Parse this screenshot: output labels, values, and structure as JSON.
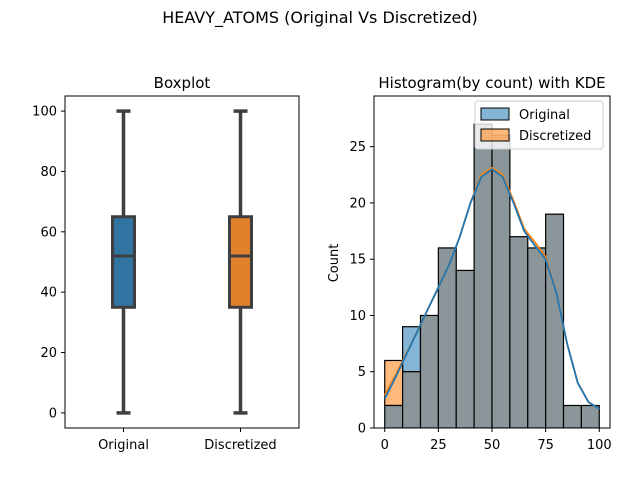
{
  "suptitle": "HEAVY_ATOMS (Original Vs Discretized)",
  "colors": {
    "original": "#1f77b4",
    "discretized": "#ff7f0e",
    "box_original": "#3274a1",
    "box_discretized": "#e1812c",
    "box_line": "#3f3f3f",
    "hist_original": "#1f77b4",
    "hist_discretized": "#ff7f0e",
    "hist_overlap": "#8a9699",
    "kde_original": "#1f77b4",
    "kde_discretized": "#ff7f0e"
  },
  "chart_data": [
    {
      "type": "box",
      "title": "Boxplot",
      "xlabel": "",
      "ylabel": "",
      "categories": [
        "Original",
        "Discretized"
      ],
      "ylim": [
        -5,
        105
      ],
      "yticks": [
        0,
        20,
        40,
        60,
        80,
        100
      ],
      "boxes": [
        {
          "category": "Original",
          "min": 0,
          "q1": 35,
          "median": 52,
          "q3": 65,
          "max": 100
        },
        {
          "category": "Discretized",
          "min": 0,
          "q1": 35,
          "median": 52,
          "q3": 65,
          "max": 100
        }
      ],
      "grid": false
    },
    {
      "type": "histogram",
      "title": "Histogram(by count) with KDE",
      "xlabel": "",
      "ylabel": "Count",
      "xlim": [
        -5,
        105
      ],
      "ylim": [
        0,
        29.5
      ],
      "xticks": [
        0,
        25,
        50,
        75,
        100
      ],
      "yticks": [
        0,
        5,
        10,
        15,
        20,
        25
      ],
      "legend_position": "top-right",
      "bin_edges": [
        0,
        8.33,
        16.67,
        25,
        33.33,
        41.67,
        50,
        58.33,
        66.67,
        75,
        83.33,
        91.67,
        100
      ],
      "series": [
        {
          "name": "Original",
          "counts": [
            2,
            9,
            10,
            16,
            14,
            27,
            26,
            17,
            16,
            19,
            2,
            2
          ],
          "kde": {
            "x": [
              0,
              5,
              10,
              15,
              20,
              25,
              30,
              35,
              40,
              45,
              50,
              55,
              60,
              65,
              70,
              75,
              80,
              85,
              90,
              95,
              100
            ],
            "y": [
              2.6,
              4.5,
              6.5,
              8.5,
              10.5,
              12.5,
              14.5,
              17.0,
              20.0,
              22.3,
              23.0,
              22.3,
              20.0,
              17.5,
              16.2,
              15.0,
              12.0,
              7.5,
              4.0,
              2.3,
              1.7
            ]
          }
        },
        {
          "name": "Discretized",
          "counts": [
            6,
            5,
            10,
            16,
            14,
            27,
            26,
            17,
            16,
            19,
            2,
            2
          ],
          "kde": {
            "x": [
              0,
              5,
              10,
              15,
              20,
              25,
              30,
              35,
              40,
              45,
              50,
              55,
              60,
              65,
              70,
              75,
              80,
              85,
              90,
              95,
              100
            ],
            "y": [
              2.9,
              4.7,
              6.6,
              8.5,
              10.5,
              12.5,
              14.5,
              17.0,
              20.0,
              22.5,
              23.1,
              22.5,
              20.2,
              17.7,
              16.5,
              15.2,
              12.0,
              7.5,
              4.0,
              2.3,
              1.7
            ]
          }
        }
      ]
    }
  ]
}
